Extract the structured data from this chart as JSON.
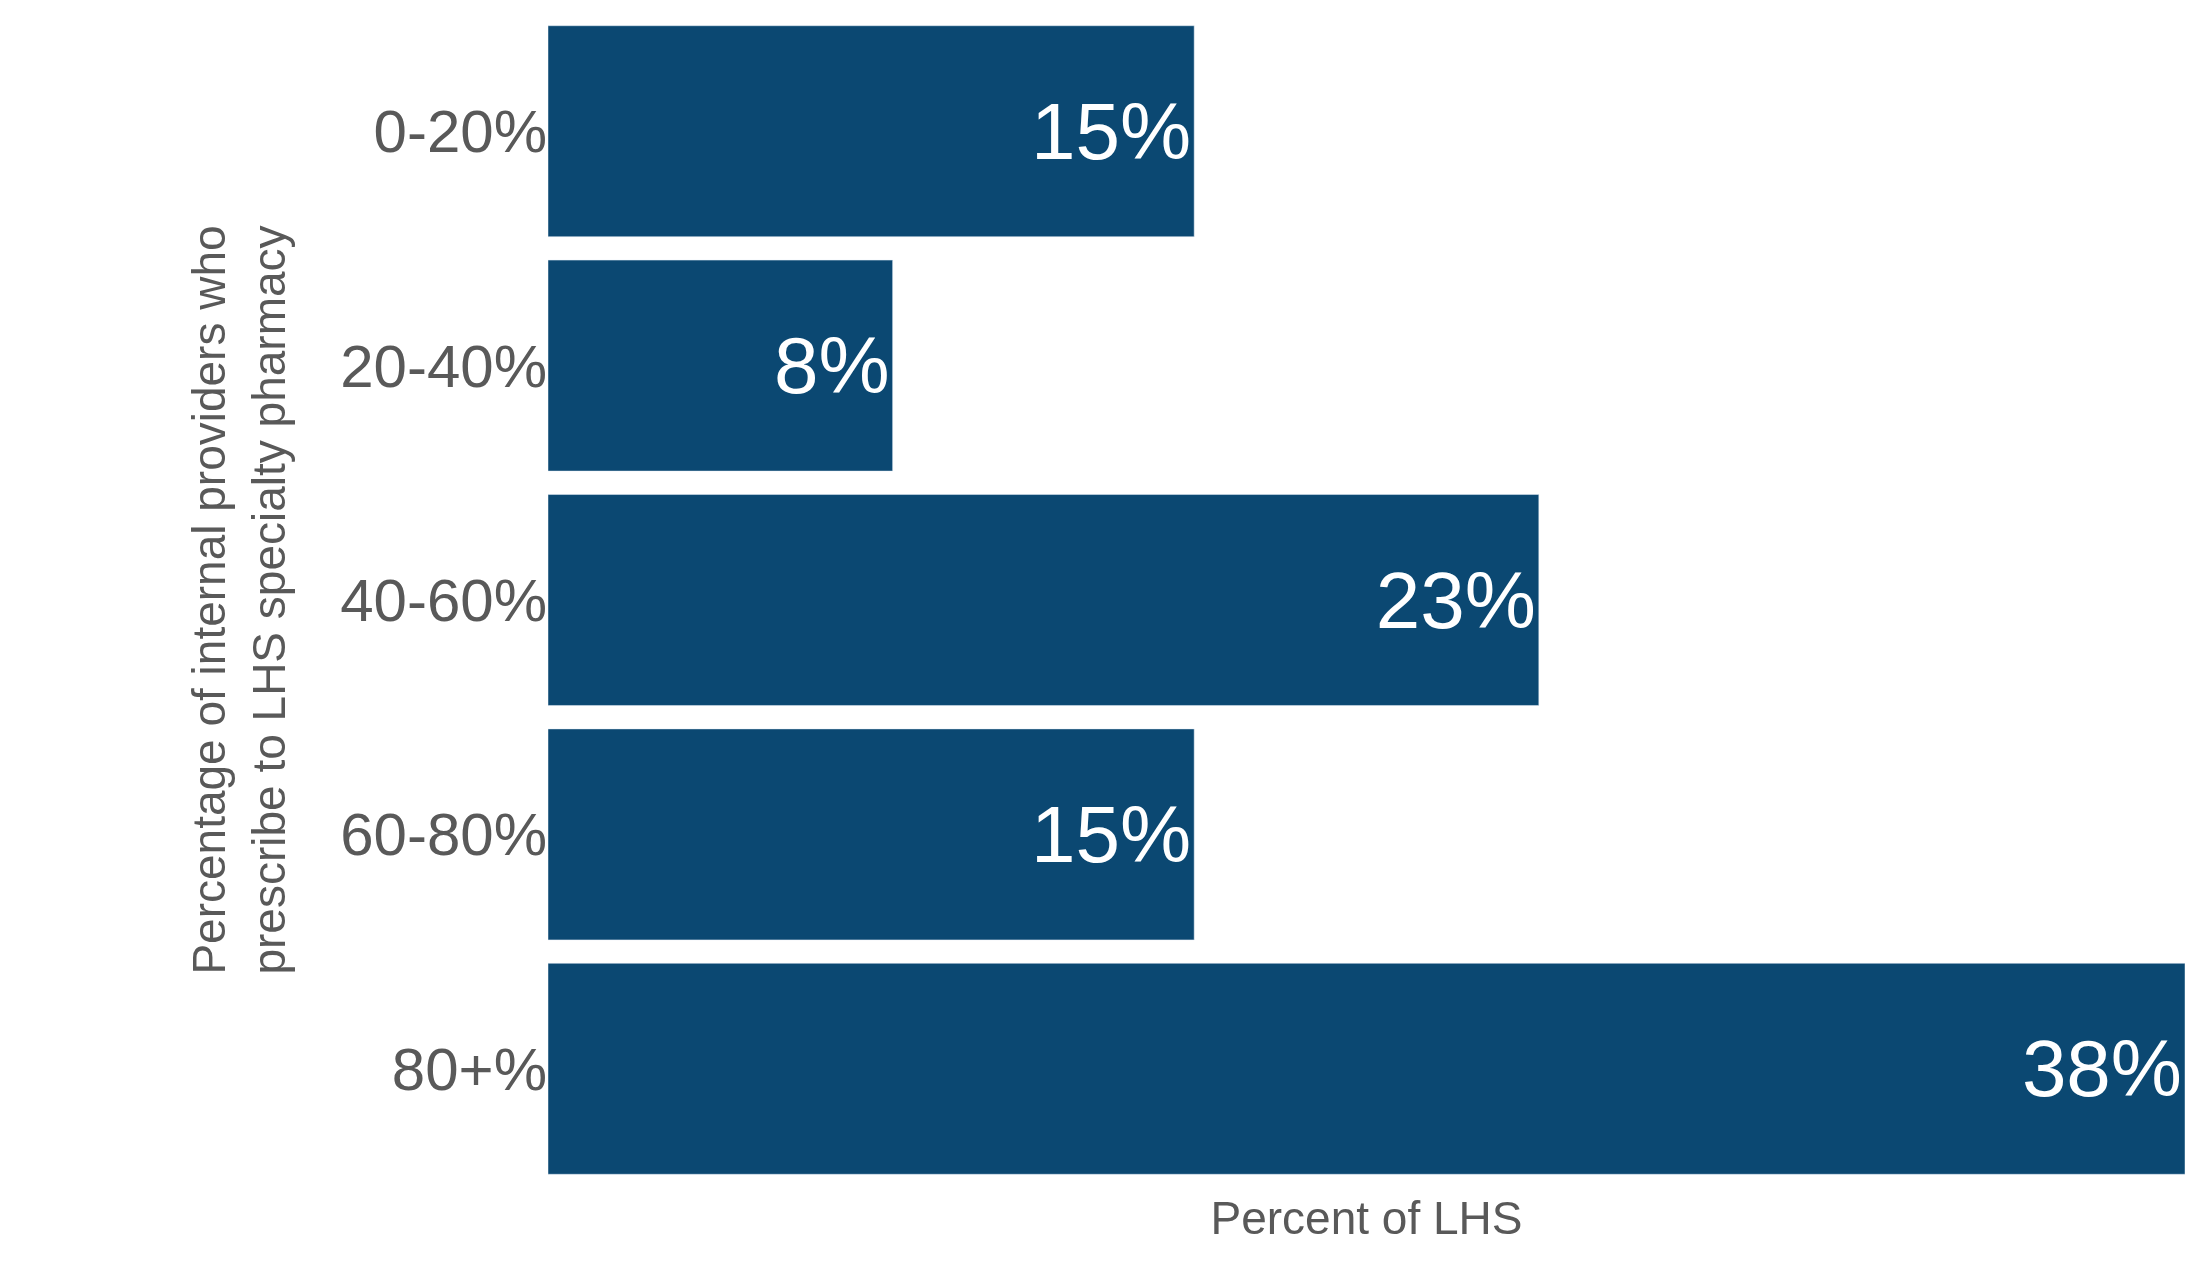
{
  "chart_data": {
    "type": "bar",
    "orientation": "horizontal",
    "xlabel": "Percent of LHS",
    "ylabel": "Percentage of internal providers who\nprescribe to LHS specialty pharmacy",
    "categories": [
      "0-20%",
      "20-40%",
      "40-60%",
      "60-80%",
      "80+%"
    ],
    "values": [
      15,
      8,
      23,
      15,
      38
    ],
    "color": "#0b4872",
    "value_labels": [
      "15%",
      "8%",
      "23%",
      "15%",
      "38%"
    ],
    "xlim": [
      0,
      38
    ]
  }
}
